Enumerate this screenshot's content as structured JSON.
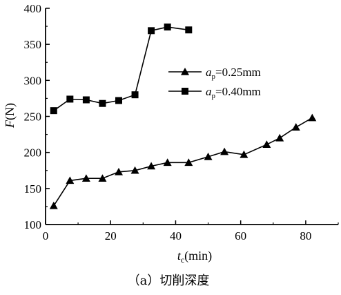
{
  "chart_data": {
    "type": "line",
    "caption": "（a）切削深度",
    "xlabel": {
      "main": "t",
      "sub": "c",
      "unit": "(min)"
    },
    "ylabel": {
      "main": "F",
      "unit": "(N)"
    },
    "xlim": [
      0,
      90
    ],
    "ylim": [
      100,
      400
    ],
    "xticks": [
      0,
      20,
      40,
      60,
      80
    ],
    "yticks": [
      100,
      150,
      200,
      250,
      300,
      350,
      400
    ],
    "legend_position": "right",
    "series": [
      {
        "name": "ap=0.25mm",
        "legend": {
          "main": "a",
          "sub": "p",
          "rest": "=0.25mm"
        },
        "marker": "triangle",
        "points": [
          [
            2.5,
            126
          ],
          [
            7.5,
            161
          ],
          [
            12.5,
            164
          ],
          [
            17.5,
            164
          ],
          [
            22.5,
            173
          ],
          [
            27.5,
            175
          ],
          [
            32.5,
            181
          ],
          [
            37.5,
            186
          ],
          [
            44,
            186
          ],
          [
            50,
            194
          ],
          [
            55,
            201
          ],
          [
            61,
            197
          ],
          [
            68,
            211
          ],
          [
            72,
            220
          ],
          [
            77,
            235
          ],
          [
            82,
            248
          ]
        ]
      },
      {
        "name": "ap=0.40mm",
        "legend": {
          "main": "a",
          "sub": "p",
          "rest": "=0.40mm"
        },
        "marker": "square",
        "points": [
          [
            2.5,
            258
          ],
          [
            7.5,
            274
          ],
          [
            12.5,
            273
          ],
          [
            17.5,
            268
          ],
          [
            22.5,
            272
          ],
          [
            27.5,
            280
          ],
          [
            32.5,
            369
          ],
          [
            37.5,
            374
          ],
          [
            44,
            370
          ]
        ]
      }
    ]
  }
}
